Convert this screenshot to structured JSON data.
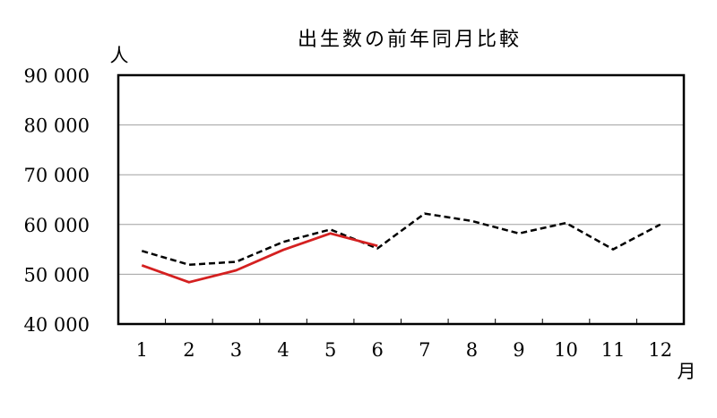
{
  "chart_data": {
    "type": "line",
    "title": "出生数の前年同月比較",
    "ylabel": "人",
    "xlabel": "月",
    "ylim": [
      40000,
      90000
    ],
    "y_ticks": [
      40000,
      50000,
      60000,
      70000,
      80000,
      90000
    ],
    "y_tick_labels": [
      "40 000",
      "50 000",
      "60 000",
      "70 000",
      "80 000",
      "90 000"
    ],
    "categories": [
      "1",
      "2",
      "3",
      "4",
      "5",
      "6",
      "7",
      "8",
      "9",
      "10",
      "11",
      "12"
    ],
    "grid": true,
    "series": [
      {
        "style": "dashed",
        "color": "#000000",
        "values": [
          54700,
          51900,
          52500,
          56500,
          59000,
          55200,
          62200,
          60700,
          58200,
          60300,
          55000,
          60000
        ]
      },
      {
        "style": "solid",
        "color": "#d42020",
        "values": [
          51800,
          48400,
          50800,
          54900,
          58200,
          55700,
          null,
          null,
          null,
          null,
          null,
          null
        ]
      }
    ]
  }
}
